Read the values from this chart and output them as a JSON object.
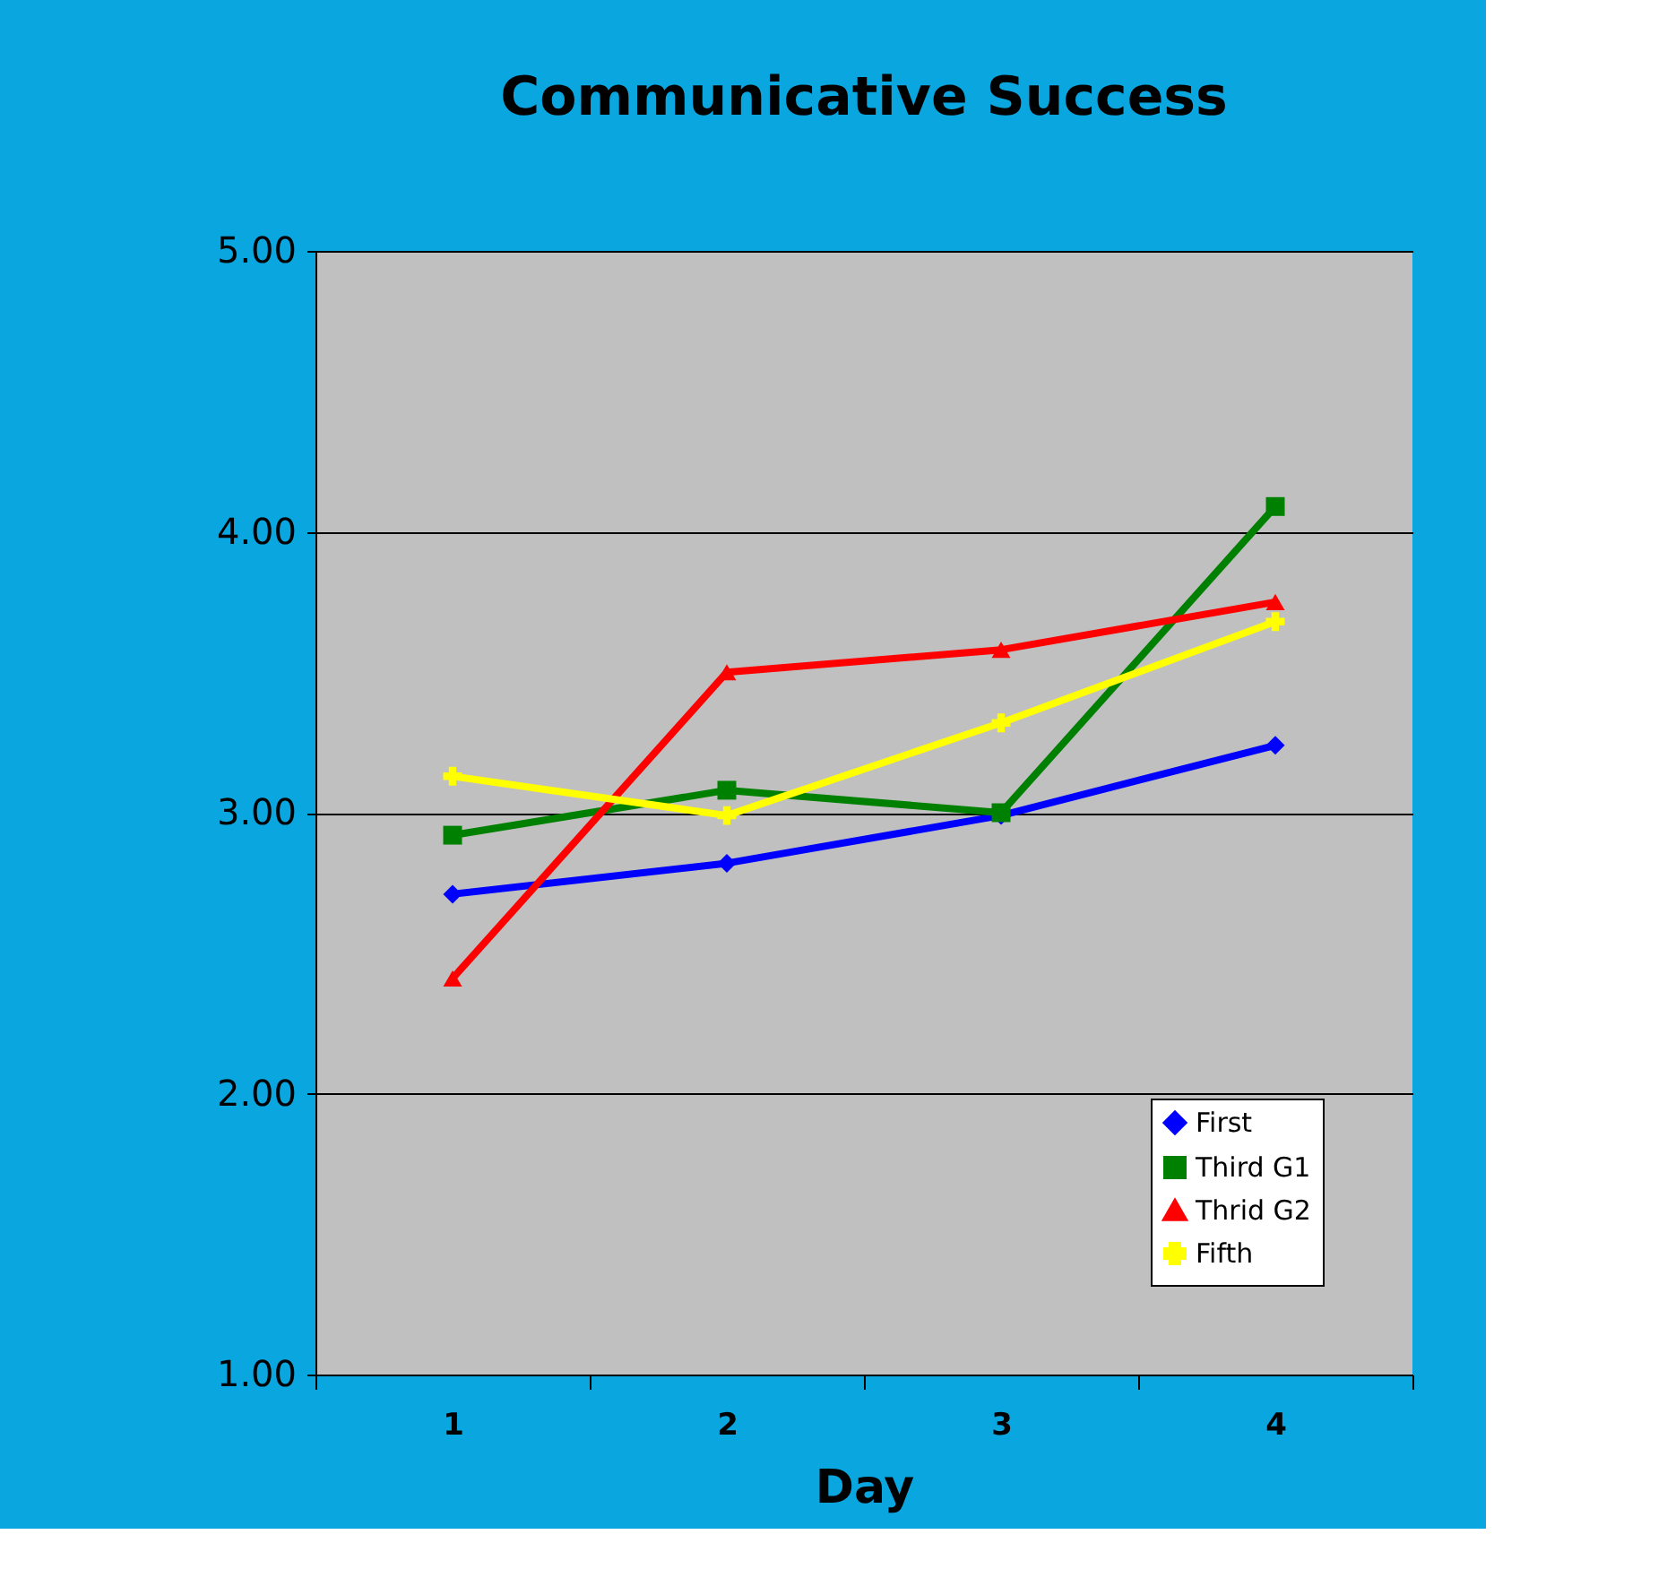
{
  "chart_data": {
    "type": "line",
    "title": "Communicative Success",
    "xlabel": "Day",
    "categories": [
      "1",
      "2",
      "3",
      "4"
    ],
    "series": [
      {
        "name": "First",
        "color": "#0000ff",
        "marker": "diamond",
        "values": [
          2.71,
          2.82,
          2.99,
          3.24
        ]
      },
      {
        "name": "Third G1",
        "color": "#008000",
        "marker": "square",
        "values": [
          2.92,
          3.08,
          3.0,
          4.09
        ]
      },
      {
        "name": "Thrid G2",
        "color": "#ff0000",
        "marker": "triangle",
        "values": [
          2.41,
          3.5,
          3.58,
          3.75
        ]
      },
      {
        "name": "Fifth",
        "color": "#ffff00",
        "marker": "cross",
        "values": [
          3.13,
          2.99,
          3.32,
          3.68
        ]
      }
    ],
    "ylim": [
      1,
      5
    ],
    "yticks": [
      {
        "value": 1,
        "label": "1.00"
      },
      {
        "value": 2,
        "label": "2.00"
      },
      {
        "value": 3,
        "label": "3.00"
      },
      {
        "value": 4,
        "label": "4.00"
      },
      {
        "value": 5,
        "label": "5.00"
      }
    ],
    "grid": "y",
    "legend": "bottom right",
    "line_style": "solid"
  }
}
